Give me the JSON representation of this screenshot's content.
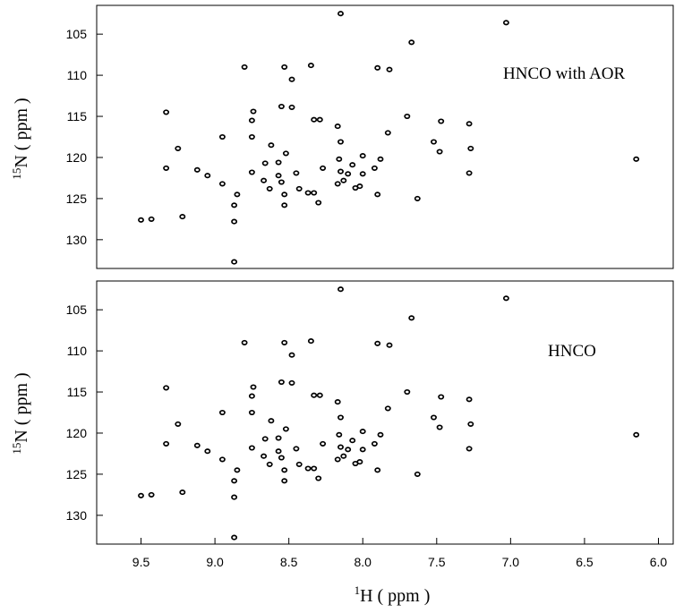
{
  "chart_data": [
    {
      "type": "scatter",
      "label": "HNCO with AOR",
      "ylabel_sup": "15",
      "ylabel": "N ( ppm )",
      "xlim": [
        9.8,
        5.9
      ],
      "ylim": [
        101.5,
        133.5
      ],
      "x_reversed": true,
      "y_reversed": true,
      "yticks": [
        "105",
        "110",
        "115",
        "120",
        "125",
        "130"
      ],
      "points": [
        [
          8.15,
          102.5
        ],
        [
          7.03,
          103.6
        ],
        [
          7.67,
          106.0
        ],
        [
          8.8,
          109.0
        ],
        [
          8.53,
          109.0
        ],
        [
          8.35,
          108.8
        ],
        [
          8.48,
          110.5
        ],
        [
          7.9,
          109.1
        ],
        [
          7.82,
          109.3
        ],
        [
          9.33,
          114.5
        ],
        [
          8.74,
          114.4
        ],
        [
          8.75,
          115.5
        ],
        [
          8.55,
          113.8
        ],
        [
          8.48,
          113.9
        ],
        [
          8.33,
          115.4
        ],
        [
          8.29,
          115.4
        ],
        [
          8.17,
          116.2
        ],
        [
          7.7,
          115.0
        ],
        [
          7.47,
          115.6
        ],
        [
          7.28,
          115.9
        ],
        [
          9.25,
          118.9
        ],
        [
          8.95,
          117.5
        ],
        [
          8.75,
          117.5
        ],
        [
          8.62,
          118.5
        ],
        [
          8.52,
          119.5
        ],
        [
          8.15,
          118.1
        ],
        [
          8.0,
          119.8
        ],
        [
          7.88,
          120.2
        ],
        [
          7.83,
          117.0
        ],
        [
          7.52,
          118.1
        ],
        [
          7.48,
          119.3
        ],
        [
          7.27,
          118.9
        ],
        [
          6.15,
          120.2
        ],
        [
          9.33,
          121.3
        ],
        [
          9.12,
          121.5
        ],
        [
          9.05,
          122.2
        ],
        [
          8.95,
          123.2
        ],
        [
          8.85,
          124.5
        ],
        [
          8.87,
          125.8
        ],
        [
          8.75,
          121.8
        ],
        [
          8.66,
          120.7
        ],
        [
          8.67,
          122.8
        ],
        [
          8.63,
          123.8
        ],
        [
          8.57,
          122.2
        ],
        [
          8.57,
          120.6
        ],
        [
          8.55,
          123.0
        ],
        [
          8.53,
          124.5
        ],
        [
          8.53,
          125.8
        ],
        [
          8.45,
          121.9
        ],
        [
          8.43,
          123.8
        ],
        [
          8.37,
          124.3
        ],
        [
          8.33,
          124.3
        ],
        [
          8.3,
          125.5
        ],
        [
          8.27,
          121.3
        ],
        [
          8.16,
          120.2
        ],
        [
          8.15,
          121.7
        ],
        [
          8.17,
          123.2
        ],
        [
          8.13,
          122.8
        ],
        [
          8.1,
          122.0
        ],
        [
          8.07,
          120.9
        ],
        [
          8.05,
          123.7
        ],
        [
          8.02,
          123.5
        ],
        [
          8.0,
          122.0
        ],
        [
          7.92,
          121.3
        ],
        [
          7.9,
          124.5
        ],
        [
          7.63,
          125.0
        ],
        [
          7.28,
          121.9
        ],
        [
          9.5,
          127.6
        ],
        [
          9.43,
          127.5
        ],
        [
          9.22,
          127.2
        ],
        [
          8.87,
          127.8
        ],
        [
          8.87,
          132.7
        ]
      ]
    },
    {
      "type": "scatter",
      "label": "HNCO",
      "ylabel_sup": "15",
      "ylabel": "N ( ppm )",
      "xlabel_sup": "1",
      "xlabel": "H ( ppm )",
      "xlim": [
        9.8,
        5.9
      ],
      "ylim": [
        101.5,
        133.5
      ],
      "x_reversed": true,
      "y_reversed": true,
      "yticks": [
        "105",
        "110",
        "115",
        "120",
        "125",
        "130"
      ],
      "xticks": [
        "9.5",
        "9.0",
        "8.5",
        "8.0",
        "7.5",
        "7.0",
        "6.5",
        "6.0"
      ],
      "points": [
        [
          8.15,
          102.5
        ],
        [
          7.03,
          103.6
        ],
        [
          7.67,
          106.0
        ],
        [
          8.8,
          109.0
        ],
        [
          8.53,
          109.0
        ],
        [
          8.35,
          108.8
        ],
        [
          8.48,
          110.5
        ],
        [
          7.9,
          109.1
        ],
        [
          7.82,
          109.3
        ],
        [
          9.33,
          114.5
        ],
        [
          8.74,
          114.4
        ],
        [
          8.75,
          115.5
        ],
        [
          8.55,
          113.8
        ],
        [
          8.48,
          113.9
        ],
        [
          8.33,
          115.4
        ],
        [
          8.29,
          115.4
        ],
        [
          8.17,
          116.2
        ],
        [
          7.7,
          115.0
        ],
        [
          7.47,
          115.6
        ],
        [
          7.28,
          115.9
        ],
        [
          9.25,
          118.9
        ],
        [
          8.95,
          117.5
        ],
        [
          8.75,
          117.5
        ],
        [
          8.62,
          118.5
        ],
        [
          8.52,
          119.5
        ],
        [
          8.15,
          118.1
        ],
        [
          8.0,
          119.8
        ],
        [
          7.88,
          120.2
        ],
        [
          7.83,
          117.0
        ],
        [
          7.52,
          118.1
        ],
        [
          7.48,
          119.3
        ],
        [
          7.27,
          118.9
        ],
        [
          6.15,
          120.2
        ],
        [
          9.33,
          121.3
        ],
        [
          9.12,
          121.5
        ],
        [
          9.05,
          122.2
        ],
        [
          8.95,
          123.2
        ],
        [
          8.85,
          124.5
        ],
        [
          8.87,
          125.8
        ],
        [
          8.75,
          121.8
        ],
        [
          8.66,
          120.7
        ],
        [
          8.67,
          122.8
        ],
        [
          8.63,
          123.8
        ],
        [
          8.57,
          122.2
        ],
        [
          8.57,
          120.6
        ],
        [
          8.55,
          123.0
        ],
        [
          8.53,
          124.5
        ],
        [
          8.53,
          125.8
        ],
        [
          8.45,
          121.9
        ],
        [
          8.43,
          123.8
        ],
        [
          8.37,
          124.3
        ],
        [
          8.33,
          124.3
        ],
        [
          8.3,
          125.5
        ],
        [
          8.27,
          121.3
        ],
        [
          8.16,
          120.2
        ],
        [
          8.15,
          121.7
        ],
        [
          8.17,
          123.2
        ],
        [
          8.13,
          122.8
        ],
        [
          8.1,
          122.0
        ],
        [
          8.07,
          120.9
        ],
        [
          8.05,
          123.7
        ],
        [
          8.02,
          123.5
        ],
        [
          8.0,
          122.0
        ],
        [
          7.92,
          121.3
        ],
        [
          7.9,
          124.5
        ],
        [
          7.63,
          125.0
        ],
        [
          7.28,
          121.9
        ],
        [
          9.5,
          127.6
        ],
        [
          9.43,
          127.5
        ],
        [
          9.22,
          127.2
        ],
        [
          8.87,
          127.8
        ],
        [
          8.87,
          132.7
        ]
      ]
    }
  ]
}
